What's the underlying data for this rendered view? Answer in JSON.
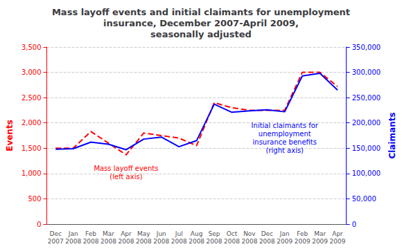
{
  "chart_data": {
    "type": "line",
    "title": "Mass layoff events and initial claimants for unemployment\ninsurance, December 2007-April 2009,\nseasonally adjusted",
    "categories": [
      "Dec\n2007",
      "Jan\n2008",
      "Feb\n2008",
      "Mar\n2008",
      "Apr\n2008",
      "May\n2008",
      "Jun\n2008",
      "Jul\n2008",
      "Aug\n2008",
      "Sep\n2008",
      "Oct\n2008",
      "Nov\n2008",
      "Dec\n2008",
      "Jan\n2009",
      "Feb\n2009",
      "Mar\n2009",
      "Apr\n2009"
    ],
    "series": [
      {
        "color": "red",
        "line_style": "dashed",
        "axis": "y",
        "values": [
          1500,
          1500,
          1830,
          1600,
          1370,
          1800,
          1750,
          1700,
          1550,
          2400,
          2300,
          2250,
          2250,
          2250,
          3000,
          3000,
          2720
        ]
      },
      {
        "color": "blue",
        "line_style": "solid",
        "axis": "y2",
        "values": [
          148000,
          149000,
          162000,
          158000,
          147000,
          168000,
          172000,
          153000,
          165000,
          237000,
          221000,
          224000,
          226000,
          222000,
          293000,
          298000,
          265000
        ]
      }
    ],
    "ylabel": "Events",
    "y2label": "Claimants",
    "ylim": [
      0,
      3500
    ],
    "yticks": [
      0,
      500,
      {
        "value": 1000,
        "label": "1,000"
      },
      {
        "value": 1500,
        "label": "1,500"
      },
      {
        "value": 2000,
        "label": "2,000"
      },
      {
        "value": 2500,
        "label": "2,500"
      },
      {
        "value": 3000,
        "label": "3,000"
      },
      {
        "value": 3500,
        "label": "3,500"
      }
    ],
    "y2lim": [
      0,
      350000
    ],
    "y2ticks": [
      0,
      {
        "value": 50000,
        "label": "50,000"
      },
      {
        "value": 100000,
        "label": "100,000"
      },
      {
        "value": 150000,
        "label": "150,000"
      },
      {
        "value": 200000,
        "label": "200,000"
      },
      {
        "value": 250000,
        "label": "250,000"
      },
      {
        "value": 300000,
        "label": "300,000"
      },
      {
        "value": 350000,
        "label": "350,000"
      }
    ],
    "grid": true,
    "annotations": [
      {
        "text": "Initial claimants for\nunemployment\ninsurance benefits\n(right axis)",
        "x": "Jan\n2009",
        "axis": "y2"
      },
      {
        "text": "Mass layoff events\n(left axis)",
        "x": "Apr\n2008",
        "axis": "y"
      }
    ]
  }
}
